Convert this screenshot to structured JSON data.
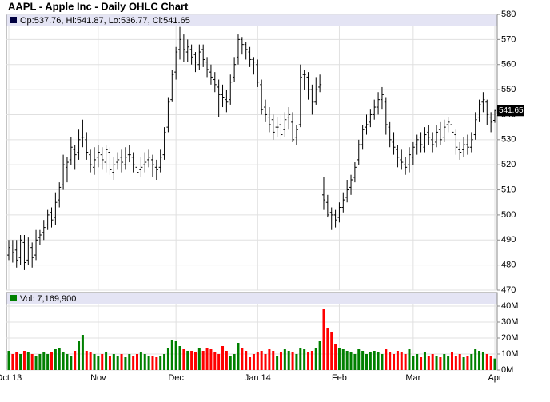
{
  "chart_data": {
    "type": "ohlc",
    "title": "AAPL - Apple Inc - Daily OHLC Chart",
    "legend_text": "Op:537.76, Hi:541.87, Lo:536.77, Cl:541.65",
    "color": "#000000",
    "grid": true,
    "categories": [
      "Oct 13",
      null,
      null,
      null,
      null,
      null,
      null,
      null,
      null,
      null,
      null,
      null,
      null,
      null,
      null,
      null,
      null,
      null,
      null,
      null,
      null,
      null,
      null,
      "Nov",
      null,
      null,
      null,
      null,
      null,
      null,
      null,
      null,
      null,
      null,
      null,
      null,
      null,
      null,
      null,
      null,
      null,
      null,
      null,
      "Dec",
      null,
      null,
      null,
      null,
      null,
      null,
      null,
      null,
      null,
      null,
      null,
      null,
      null,
      null,
      null,
      null,
      null,
      null,
      null,
      null,
      "Jan 14",
      null,
      null,
      null,
      null,
      null,
      null,
      null,
      null,
      null,
      null,
      null,
      null,
      null,
      null,
      null,
      null,
      null,
      null,
      null,
      null,
      "Feb",
      null,
      null,
      null,
      null,
      null,
      null,
      null,
      null,
      null,
      null,
      null,
      null,
      null,
      null,
      null,
      null,
      null,
      null,
      "Mar",
      null,
      null,
      null,
      null,
      null,
      null,
      null,
      null,
      null,
      null,
      null,
      null,
      null,
      null,
      null,
      null,
      null,
      null,
      null,
      null,
      "Apr"
    ],
    "open": [
      484,
      488,
      486,
      483,
      489,
      482,
      487,
      484,
      491,
      493,
      496,
      501,
      499,
      506,
      512,
      519,
      522,
      526,
      525,
      531,
      530,
      524,
      519,
      523,
      524,
      521,
      525,
      517,
      521,
      523,
      520,
      524,
      523,
      519,
      518,
      520,
      522,
      522,
      519,
      519,
      524,
      535,
      546,
      557,
      566,
      569,
      565,
      566,
      564,
      560,
      566,
      561,
      557,
      554,
      551,
      548,
      546,
      546,
      555,
      563,
      570,
      568,
      565,
      562,
      560,
      552,
      543,
      539,
      538,
      535,
      536,
      534,
      539,
      537,
      531,
      536,
      556,
      555,
      550,
      545,
      551,
      508,
      505,
      501,
      500,
      499,
      503,
      507,
      511,
      515,
      522,
      528,
      535,
      537,
      540,
      543,
      546,
      545,
      535,
      529,
      526,
      522,
      520,
      520,
      523,
      528,
      531,
      527,
      533,
      530,
      529,
      534,
      531,
      536,
      536,
      532,
      526,
      526,
      528,
      527,
      532,
      539,
      545,
      545,
      539,
      537.76
    ],
    "high": [
      490,
      490,
      490,
      492,
      492,
      491,
      489,
      494,
      494,
      498,
      502,
      503,
      509,
      513,
      524,
      523,
      531,
      528,
      534,
      538,
      533,
      526,
      527,
      528,
      527,
      528,
      527,
      523,
      525,
      526,
      527,
      528,
      525,
      523,
      523,
      525,
      526,
      524,
      522,
      526,
      535,
      547,
      558,
      567,
      575,
      572,
      570,
      568,
      565,
      568,
      568,
      563,
      560,
      557,
      554,
      552,
      550,
      556,
      563,
      572,
      571,
      569,
      567,
      563,
      562,
      554,
      546,
      543,
      540,
      539,
      540,
      541,
      543,
      541,
      536,
      560,
      558,
      557,
      552,
      555,
      556,
      515,
      508,
      503,
      502,
      505,
      509,
      514,
      516,
      521,
      530,
      536,
      540,
      542,
      546,
      549,
      551,
      547,
      537,
      533,
      528,
      526,
      523,
      527,
      529,
      532,
      533,
      535,
      536,
      533,
      536,
      537,
      538,
      539,
      538,
      534,
      529,
      531,
      532,
      533,
      541,
      546,
      549,
      546,
      541,
      541.87
    ],
    "low": [
      482,
      481,
      479,
      480,
      478,
      480,
      479,
      482,
      488,
      490,
      494,
      495,
      496,
      503,
      510,
      513,
      520,
      518,
      522,
      527,
      522,
      517,
      516,
      519,
      518,
      517,
      516,
      514,
      518,
      517,
      518,
      521,
      517,
      514,
      515,
      517,
      519,
      515,
      514,
      517,
      522,
      533,
      545,
      554,
      562,
      561,
      561,
      560,
      557,
      558,
      559,
      555,
      552,
      549,
      539,
      543,
      541,
      544,
      553,
      560,
      564,
      562,
      559,
      556,
      551,
      540,
      537,
      533,
      530,
      531,
      530,
      531,
      534,
      529,
      528,
      535,
      550,
      546,
      540,
      544,
      549,
      502,
      499,
      494,
      495,
      497,
      501,
      505,
      508,
      513,
      520,
      526,
      532,
      535,
      538,
      540,
      542,
      532,
      527,
      524,
      519,
      518,
      516,
      517,
      520,
      524,
      525,
      525,
      528,
      525,
      527,
      528,
      529,
      533,
      530,
      524,
      522,
      523,
      524,
      525,
      530,
      537,
      541,
      536,
      533,
      536.77
    ],
    "close": [
      487,
      485,
      482,
      490,
      481,
      488,
      483,
      490,
      492,
      495,
      500,
      498,
      505,
      511,
      520,
      521,
      527,
      524,
      530,
      531,
      525,
      520,
      522,
      525,
      522,
      526,
      518,
      520,
      522,
      521,
      523,
      524,
      520,
      517,
      519,
      521,
      523,
      520,
      518,
      523,
      533,
      545,
      556,
      565,
      570,
      566,
      567,
      563,
      561,
      565,
      562,
      558,
      555,
      552,
      548,
      547,
      545,
      553,
      560,
      570,
      568,
      566,
      562,
      561,
      553,
      542,
      540,
      536,
      533,
      535,
      532,
      538,
      540,
      530,
      534,
      555,
      556,
      550,
      545,
      550,
      552,
      506,
      500,
      500,
      498,
      503,
      506,
      510,
      514,
      519,
      528,
      534,
      536,
      540,
      543,
      546,
      548,
      536,
      530,
      527,
      523,
      521,
      519,
      524,
      527,
      530,
      528,
      532,
      531,
      528,
      533,
      530,
      535,
      537,
      533,
      527,
      525,
      528,
      527,
      530,
      538,
      544,
      546,
      540,
      537,
      541.65
    ],
    "ylim": [
      470,
      580
    ],
    "yticks": [
      470,
      480,
      490,
      500,
      510,
      520,
      530,
      540,
      550,
      560,
      570,
      580
    ],
    "volume": {
      "legend_text": "Vol: 7,169,900",
      "up_color": "#008000",
      "down_color": "#ff0000",
      "values": [
        12000000,
        10000000,
        11000000,
        10000000,
        12000000,
        11000000,
        10000000,
        9000000,
        10000000,
        11000000,
        10000000,
        11000000,
        13000000,
        14000000,
        11000000,
        10000000,
        9000000,
        12000000,
        18000000,
        22000000,
        12000000,
        11000000,
        10000000,
        9000000,
        10000000,
        11000000,
        9000000,
        10000000,
        9000000,
        10000000,
        8000000,
        10000000,
        9000000,
        10000000,
        11000000,
        10000000,
        9000000,
        9000000,
        8000000,
        9000000,
        10000000,
        14000000,
        19000000,
        18000000,
        15000000,
        13000000,
        12000000,
        12000000,
        11000000,
        14000000,
        12000000,
        14000000,
        13000000,
        11000000,
        10000000,
        15000000,
        12000000,
        9000000,
        10000000,
        17000000,
        14000000,
        12000000,
        8000000,
        10000000,
        11000000,
        12000000,
        10000000,
        13000000,
        12000000,
        9000000,
        11000000,
        13000000,
        12000000,
        11000000,
        10000000,
        14000000,
        13000000,
        11000000,
        12000000,
        14000000,
        18000000,
        38000000,
        26000000,
        24000000,
        16000000,
        14000000,
        13000000,
        12000000,
        11000000,
        10000000,
        13000000,
        12000000,
        10000000,
        11000000,
        12000000,
        11000000,
        10000000,
        13000000,
        11000000,
        10000000,
        12000000,
        11000000,
        10000000,
        13000000,
        9000000,
        10000000,
        8000000,
        11000000,
        9000000,
        10000000,
        9000000,
        8000000,
        10000000,
        9000000,
        11000000,
        9000000,
        10000000,
        8000000,
        9000000,
        10000000,
        13000000,
        12000000,
        11000000,
        10000000,
        9000000,
        7169900
      ],
      "ylim": [
        0,
        40000000
      ],
      "yticks": [
        {
          "value": 0,
          "label": "0M"
        },
        {
          "value": 10000000,
          "label": "10M"
        },
        {
          "value": 20000000,
          "label": "20M"
        },
        {
          "value": 30000000,
          "label": "30M"
        },
        {
          "value": 40000000,
          "label": "40M"
        }
      ]
    }
  }
}
